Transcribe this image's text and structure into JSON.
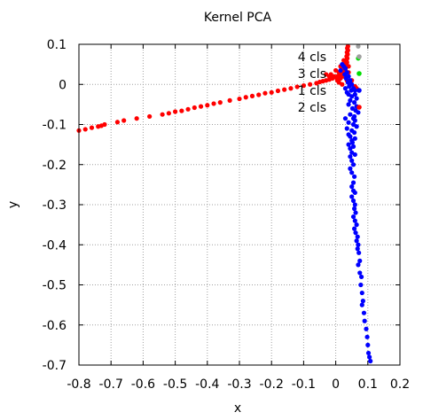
{
  "chart_data": {
    "type": "scatter",
    "title": "Kernel PCA",
    "xlabel": "x",
    "ylabel": "y",
    "xlim": [
      -0.8,
      0.2
    ],
    "ylim": [
      -0.7,
      0.1
    ],
    "xticks": [
      "-0.8",
      "-0.7",
      "-0.6",
      "-0.5",
      "-0.4",
      "-0.3",
      "-0.2",
      "-0.1",
      "0",
      "0.1",
      "0.2"
    ],
    "yticks": [
      "0.1",
      "0",
      "-0.1",
      "-0.2",
      "-0.3",
      "-0.4",
      "-0.5",
      "-0.6",
      "-0.7"
    ],
    "xtick_values": [
      -0.8,
      -0.7,
      -0.6,
      -0.5,
      -0.4,
      -0.3,
      -0.2,
      -0.1,
      0,
      0.1,
      0.2
    ],
    "ytick_values": [
      0.1,
      0,
      -0.1,
      -0.2,
      -0.3,
      -0.4,
      -0.5,
      -0.6,
      -0.7
    ],
    "grid": true,
    "legend_position": "top-right",
    "series": [
      {
        "name": "4 cls",
        "color": "#a0a0a0",
        "points": [
          [
            0.07,
            0.095
          ]
        ]
      },
      {
        "name": "3 cls",
        "color": "#00dd00",
        "points": [
          [
            0.07,
            0.065
          ]
        ]
      },
      {
        "name": "1 cls",
        "color": "#0000ff",
        "points": [
          [
            0.02,
            0.05
          ],
          [
            0.025,
            0.045
          ],
          [
            0.03,
            0.04
          ],
          [
            0.015,
            0.035
          ],
          [
            0.035,
            0.03
          ],
          [
            0.028,
            0.025
          ],
          [
            0.04,
            0.02
          ],
          [
            0.032,
            0.015
          ],
          [
            0.045,
            0.01
          ],
          [
            0.038,
            0.005
          ],
          [
            0.05,
            0.0
          ],
          [
            0.042,
            -0.005
          ],
          [
            0.055,
            -0.01
          ],
          [
            0.048,
            -0.015
          ],
          [
            0.035,
            -0.02
          ],
          [
            0.06,
            -0.025
          ],
          [
            0.05,
            -0.03
          ],
          [
            0.065,
            -0.035
          ],
          [
            0.045,
            -0.04
          ],
          [
            0.058,
            -0.045
          ],
          [
            0.04,
            -0.05
          ],
          [
            0.052,
            -0.06
          ],
          [
            0.062,
            -0.065
          ],
          [
            0.045,
            -0.075
          ],
          [
            0.058,
            -0.08
          ],
          [
            0.03,
            -0.085
          ],
          [
            0.06,
            -0.09
          ],
          [
            0.04,
            -0.095
          ],
          [
            0.055,
            -0.1
          ],
          [
            0.035,
            -0.11
          ],
          [
            0.05,
            -0.115
          ],
          [
            0.058,
            -0.12
          ],
          [
            0.04,
            -0.125
          ],
          [
            0.045,
            -0.13
          ],
          [
            0.05,
            -0.14
          ],
          [
            0.052,
            -0.145
          ],
          [
            0.04,
            -0.15
          ],
          [
            0.055,
            -0.155
          ],
          [
            0.045,
            -0.16
          ],
          [
            0.05,
            -0.17
          ],
          [
            0.06,
            -0.175
          ],
          [
            0.045,
            -0.18
          ],
          [
            0.05,
            -0.19
          ],
          [
            0.055,
            -0.2
          ],
          [
            0.045,
            -0.21
          ],
          [
            0.05,
            -0.22
          ],
          [
            0.058,
            -0.23
          ],
          [
            0.055,
            -0.245
          ],
          [
            0.05,
            -0.255
          ],
          [
            0.055,
            -0.265
          ],
          [
            0.06,
            -0.27
          ],
          [
            0.05,
            -0.28
          ],
          [
            0.055,
            -0.29
          ],
          [
            0.06,
            -0.3
          ],
          [
            0.058,
            -0.31
          ],
          [
            0.062,
            -0.32
          ],
          [
            0.055,
            -0.33
          ],
          [
            0.06,
            -0.34
          ],
          [
            0.065,
            -0.35
          ],
          [
            0.058,
            -0.36
          ],
          [
            0.062,
            -0.37
          ],
          [
            0.068,
            -0.38
          ],
          [
            0.065,
            -0.39
          ],
          [
            0.07,
            -0.4
          ],
          [
            0.068,
            -0.41
          ],
          [
            0.072,
            -0.42
          ],
          [
            0.075,
            -0.44
          ],
          [
            0.07,
            -0.45
          ],
          [
            0.075,
            -0.47
          ],
          [
            0.08,
            -0.48
          ],
          [
            0.078,
            -0.5
          ],
          [
            0.082,
            -0.52
          ],
          [
            0.085,
            -0.54
          ],
          [
            0.082,
            -0.55
          ],
          [
            0.088,
            -0.57
          ],
          [
            0.09,
            -0.59
          ],
          [
            0.095,
            -0.61
          ],
          [
            0.098,
            -0.63
          ],
          [
            0.1,
            -0.65
          ],
          [
            0.102,
            -0.67
          ],
          [
            0.105,
            -0.68
          ],
          [
            0.108,
            -0.69
          ],
          [
            0.06,
            -0.015
          ],
          [
            0.04,
            -0.025
          ],
          [
            0.03,
            -0.01
          ],
          [
            0.065,
            -0.055
          ],
          [
            0.07,
            -0.07
          ],
          [
            0.055,
            -0.085
          ],
          [
            0.065,
            -0.105
          ],
          [
            0.06,
            -0.135
          ]
        ]
      },
      {
        "name": "2 cls",
        "color": "#ff0000",
        "points": [
          [
            -0.8,
            -0.115
          ],
          [
            -0.78,
            -0.112
          ],
          [
            -0.76,
            -0.108
          ],
          [
            -0.74,
            -0.105
          ],
          [
            -0.73,
            -0.103
          ],
          [
            -0.72,
            -0.1
          ],
          [
            -0.68,
            -0.094
          ],
          [
            -0.66,
            -0.09
          ],
          [
            -0.62,
            -0.085
          ],
          [
            -0.58,
            -0.08
          ],
          [
            -0.54,
            -0.075
          ],
          [
            -0.52,
            -0.072
          ],
          [
            -0.5,
            -0.068
          ],
          [
            -0.48,
            -0.066
          ],
          [
            -0.46,
            -0.062
          ],
          [
            -0.44,
            -0.058
          ],
          [
            -0.42,
            -0.055
          ],
          [
            -0.4,
            -0.052
          ],
          [
            -0.38,
            -0.048
          ],
          [
            -0.36,
            -0.045
          ],
          [
            -0.33,
            -0.04
          ],
          [
            -0.3,
            -0.036
          ],
          [
            -0.28,
            -0.032
          ],
          [
            -0.26,
            -0.029
          ],
          [
            -0.24,
            -0.026
          ],
          [
            -0.22,
            -0.022
          ],
          [
            -0.2,
            -0.02
          ],
          [
            -0.18,
            -0.016
          ],
          [
            -0.16,
            -0.013
          ],
          [
            -0.14,
            -0.01
          ],
          [
            -0.12,
            -0.006
          ],
          [
            -0.1,
            -0.003
          ],
          [
            -0.08,
            0.0
          ],
          [
            -0.06,
            0.003
          ],
          [
            -0.05,
            0.006
          ],
          [
            -0.04,
            0.008
          ],
          [
            -0.03,
            0.01
          ],
          [
            -0.02,
            0.012
          ],
          [
            -0.01,
            0.015
          ],
          [
            0.0,
            0.018
          ],
          [
            0.005,
            0.02
          ],
          [
            0.01,
            0.022
          ],
          [
            0.015,
            0.025
          ],
          [
            0.02,
            0.028
          ],
          [
            0.025,
            0.032
          ],
          [
            0.03,
            0.036
          ],
          [
            0.028,
            0.04
          ],
          [
            0.032,
            0.045
          ],
          [
            0.03,
            0.05
          ],
          [
            0.035,
            0.055
          ],
          [
            0.033,
            0.06
          ],
          [
            0.036,
            0.065
          ],
          [
            0.034,
            0.07
          ],
          [
            0.037,
            0.075
          ],
          [
            0.035,
            0.08
          ],
          [
            0.038,
            0.085
          ],
          [
            0.036,
            0.09
          ],
          [
            0.038,
            0.095
          ],
          [
            0.005,
            0.01
          ],
          [
            0.015,
            0.015
          ],
          [
            -0.005,
            0.02
          ],
          [
            0.02,
            0.0
          ],
          [
            0.01,
            0.03
          ],
          [
            0.025,
            0.02
          ],
          [
            -0.015,
            0.025
          ],
          [
            0.04,
            0.03
          ],
          [
            0.03,
            0.02
          ],
          [
            0.05,
            0.01
          ],
          [
            0.045,
            0.0
          ],
          [
            0.06,
            -0.005
          ],
          [
            0.065,
            -0.01
          ],
          [
            0.02,
            0.04
          ],
          [
            0.0,
            0.035
          ],
          [
            -0.02,
            0.02
          ],
          [
            0.01,
            0.005
          ],
          [
            -0.03,
            0.025
          ],
          [
            0.035,
            0.01
          ],
          [
            0.04,
            0.045
          ],
          [
            0.015,
            0.045
          ],
          [
            0.025,
            0.06
          ]
        ]
      }
    ]
  }
}
